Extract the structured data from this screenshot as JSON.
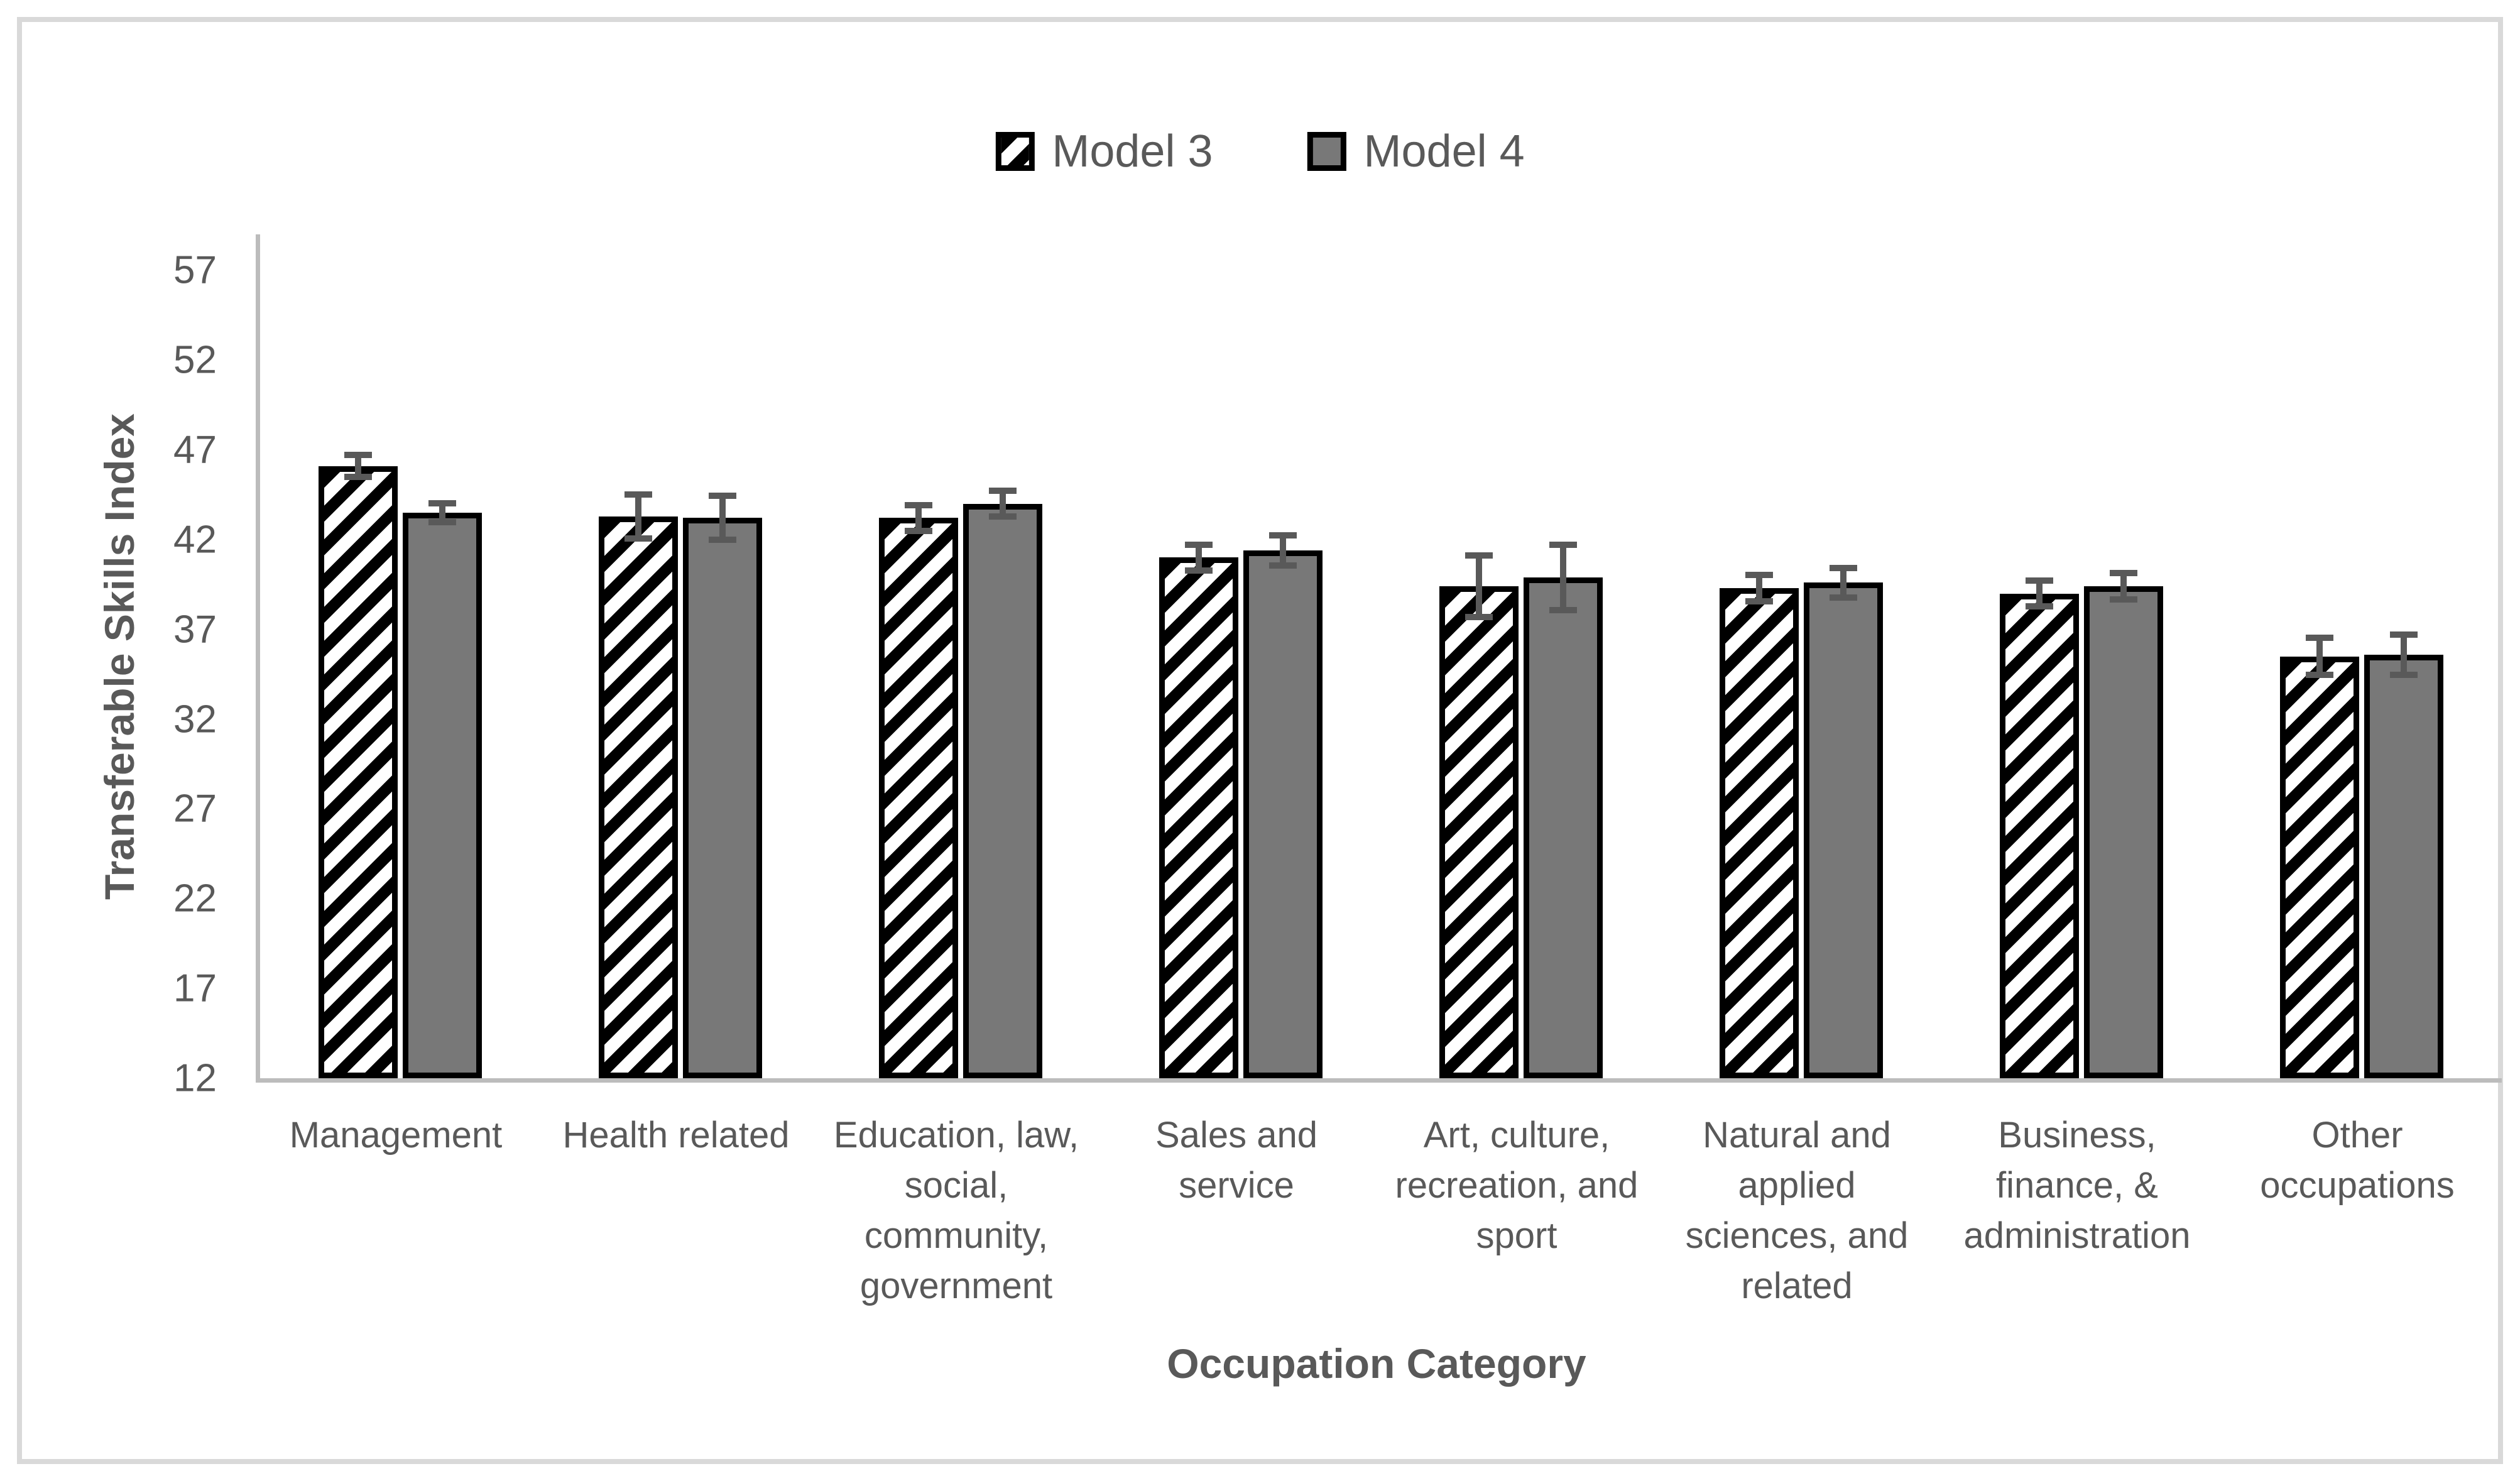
{
  "chart_data": {
    "type": "bar",
    "title": "",
    "xlabel": "Occupation Category",
    "ylabel": "Transferable Skills Index",
    "ylim": [
      12,
      59
    ],
    "yticks": [
      57,
      52,
      47,
      42,
      37,
      32,
      27,
      22,
      17,
      12
    ],
    "grid": false,
    "legend_position": "top-center",
    "categories": [
      "Management",
      "Health related",
      "Education, law,\nsocial,\ncommunity,\ngovernment",
      "Sales and\nservice",
      "Art, culture,\nrecreation, and\nsport",
      "Natural and\napplied\nsciences, and\nrelated",
      "Business,\nfinance, &\nadministration",
      "Other\noccupations"
    ],
    "series": [
      {
        "name": "Model 3",
        "pattern": "black-diagonal-hatch-on-white",
        "values": [
          46.1,
          43.3,
          43.2,
          41.0,
          39.4,
          39.3,
          39.0,
          35.5
        ],
        "errors": [
          0.8,
          1.4,
          0.9,
          0.9,
          1.9,
          0.9,
          0.9,
          1.2
        ]
      },
      {
        "name": "Model 4",
        "fill": "#787878",
        "values": [
          43.5,
          43.2,
          44.0,
          41.4,
          39.9,
          39.6,
          39.4,
          35.6
        ],
        "errors": [
          0.7,
          1.4,
          0.9,
          1.0,
          2.0,
          1.0,
          0.9,
          1.3
        ]
      }
    ],
    "colors": {
      "bar_outline": "#000000",
      "model4_fill": "#787878",
      "error_bar": "#595959",
      "axis_line": "#bcbcbc",
      "text": "#595959",
      "figure_border": "#d9d9d9"
    }
  }
}
